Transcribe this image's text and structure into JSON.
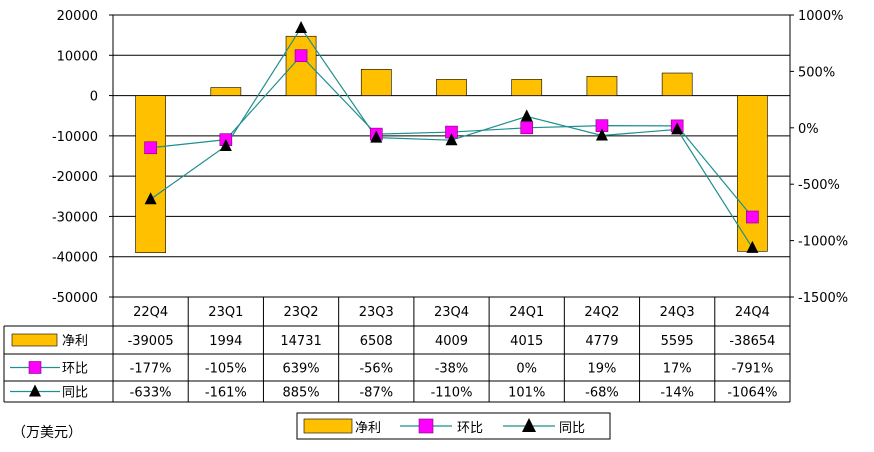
{
  "chart_data": {
    "type": "bar",
    "categories": [
      "22Q4",
      "23Q1",
      "23Q2",
      "23Q3",
      "23Q4",
      "24Q1",
      "24Q2",
      "24Q3",
      "24Q4"
    ],
    "series": [
      {
        "name": "净利",
        "type": "bar",
        "axis": "left",
        "color": "#ffc000",
        "values": [
          -39005,
          1994,
          14731,
          6508,
          4009,
          4015,
          4779,
          5595,
          -38654
        ],
        "labels": [
          "-39005",
          "1994",
          "14731",
          "6508",
          "4009",
          "4015",
          "4779",
          "5595",
          "-38654"
        ]
      },
      {
        "name": "环比",
        "type": "line",
        "axis": "right",
        "color": "#1f8f8f",
        "marker": "square",
        "marker_color": "#ff00ff",
        "values": [
          -177,
          -105,
          639,
          -56,
          -38,
          0,
          19,
          17,
          -791
        ],
        "labels": [
          "-177%",
          "-105%",
          "639%",
          "-56%",
          "-38%",
          "0%",
          "19%",
          "17%",
          "-791%"
        ]
      },
      {
        "name": "同比",
        "type": "line",
        "axis": "right",
        "color": "#1f8f8f",
        "marker": "triangle",
        "marker_color": "#000000",
        "values": [
          -633,
          -161,
          885,
          -87,
          -110,
          101,
          -68,
          -14,
          -1064
        ],
        "labels": [
          "-633%",
          "-161%",
          "885%",
          "-87%",
          "-110%",
          "101%",
          "-68%",
          "-14%",
          "-1064%"
        ]
      }
    ],
    "y_left": {
      "ylim": [
        -50000,
        20000
      ],
      "ticks": [
        20000,
        10000,
        0,
        -10000,
        -20000,
        -30000,
        -40000,
        -50000
      ]
    },
    "y_right": {
      "ylim": [
        -1500,
        1000
      ],
      "ticks": [
        "1000%",
        "500%",
        "0%",
        "-500%",
        "-1000%",
        "-1500%"
      ],
      "tick_values": [
        1000,
        500,
        0,
        -500,
        -1000,
        -1500
      ]
    },
    "grid": true,
    "legend": {
      "placement": "bottom-center",
      "items": [
        "净利",
        "环比",
        "同比"
      ]
    },
    "unit_note": "（万美元）"
  }
}
